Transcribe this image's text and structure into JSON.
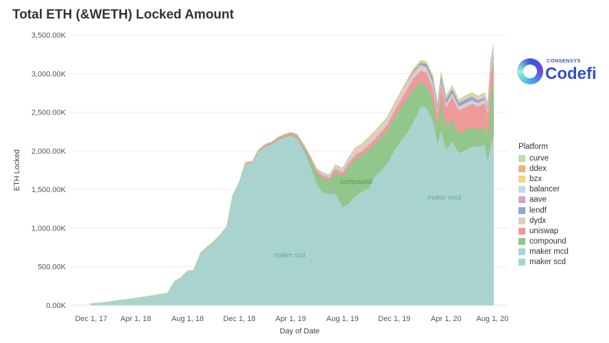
{
  "title": "Total ETH (&WETH) Locked Amount",
  "logo": {
    "sub": "CONSENSYS",
    "main": "Codefi"
  },
  "chart_data": {
    "type": "area",
    "stacked": true,
    "title": "Total ETH (&WETH) Locked Amount",
    "xlabel": "Day of Date",
    "ylabel": "ETH Locked",
    "ylim": [
      0,
      3500
    ],
    "y_unit": "K",
    "grid": true,
    "legend_position": "right",
    "legend_title": "Platform",
    "y_ticks": [
      "0.00K",
      "500.00K",
      "1,000.00K",
      "1,500.00K",
      "2,000.00K",
      "2,500.00K",
      "3,000.00K",
      "3,500.00K"
    ],
    "y_tick_values": [
      0,
      500,
      1000,
      1500,
      2000,
      2500,
      3000,
      3500
    ],
    "x_ticks": [
      "Dec 1, 17",
      "Apr 1, 18",
      "Aug 1, 18",
      "Dec 1, 18",
      "Apr 1, 19",
      "Aug 1, 19",
      "Dec 1, 19",
      "Apr 1, 20",
      "Aug 1, 20"
    ],
    "x_tick_dates": [
      "2017-12-01",
      "2018-04-01",
      "2018-08-01",
      "2018-12-01",
      "2019-04-01",
      "2019-08-01",
      "2019-12-01",
      "2020-04-01",
      "2020-08-01"
    ],
    "annotations": [
      {
        "text": "compound",
        "series": "compound",
        "color": "#4f9a4a"
      },
      {
        "text": "maker mcd",
        "series": "maker mcd",
        "color": "#6aa9a4"
      },
      {
        "text": "maker scd",
        "series": "maker scd",
        "color": "#6aa9a4"
      }
    ],
    "x": [
      "2017-12-15",
      "2018-01-15",
      "2018-02-15",
      "2018-03-15",
      "2018-04-15",
      "2018-05-15",
      "2018-06-15",
      "2018-07-01",
      "2018-07-15",
      "2018-08-01",
      "2018-08-15",
      "2018-09-01",
      "2018-09-15",
      "2018-10-01",
      "2018-10-15",
      "2018-11-01",
      "2018-11-15",
      "2018-12-01",
      "2018-12-15",
      "2019-01-01",
      "2019-01-15",
      "2019-02-01",
      "2019-02-15",
      "2019-03-01",
      "2019-03-15",
      "2019-04-01",
      "2019-04-15",
      "2019-05-01",
      "2019-05-15",
      "2019-06-01",
      "2019-06-15",
      "2019-07-01",
      "2019-07-15",
      "2019-08-01",
      "2019-08-15",
      "2019-09-01",
      "2019-09-15",
      "2019-10-01",
      "2019-10-15",
      "2019-11-01",
      "2019-11-15",
      "2019-12-01",
      "2019-12-15",
      "2020-01-01",
      "2020-01-15",
      "2020-02-01",
      "2020-02-15",
      "2020-03-01",
      "2020-03-12",
      "2020-03-20",
      "2020-04-01",
      "2020-04-15",
      "2020-05-01",
      "2020-05-15",
      "2020-06-01",
      "2020-06-15",
      "2020-07-01",
      "2020-07-08",
      "2020-07-15",
      "2020-07-22"
    ],
    "series": [
      {
        "name": "maker scd",
        "color": "#a9d3cf",
        "values": [
          20,
          35,
          60,
          80,
          105,
          130,
          160,
          310,
          350,
          440,
          450,
          680,
          750,
          820,
          900,
          1015,
          1410,
          1587,
          1835,
          1845,
          1990,
          2062,
          2085,
          2140,
          2170,
          2197,
          2170,
          2015,
          1840,
          1585,
          1460,
          1445,
          1450,
          1270,
          1315,
          1420,
          1470,
          1515,
          1665,
          1755,
          1840,
          1850,
          1465,
          1000,
          720,
          560,
          460,
          420,
          400,
          380,
          340,
          310,
          270,
          230,
          40,
          18,
          15,
          15,
          12,
          12
        ]
      },
      {
        "name": "maker mcd",
        "color": "#aad4d0",
        "values": [
          0,
          0,
          0,
          0,
          0,
          0,
          0,
          0,
          0,
          0,
          0,
          0,
          0,
          0,
          0,
          0,
          0,
          0,
          0,
          0,
          0,
          0,
          0,
          0,
          0,
          0,
          0,
          0,
          0,
          0,
          0,
          0,
          0,
          0,
          0,
          0,
          0,
          0,
          0,
          0,
          0,
          160,
          655,
          1240,
          1660,
          2010,
          2105,
          1970,
          1695,
          1890,
          1675,
          1815,
          1705,
          1775,
          2020,
          2037,
          2060,
          1870,
          2058,
          2193
        ]
      },
      {
        "name": "compound",
        "color": "#92c78c",
        "values": [
          0,
          0,
          0,
          0,
          0,
          0,
          0,
          0,
          0,
          0,
          0,
          0,
          0,
          0,
          0,
          0,
          0,
          0,
          0,
          3,
          5,
          5,
          5,
          8,
          10,
          10,
          15,
          40,
          80,
          130,
          190,
          170,
          280,
          400,
          480,
          480,
          470,
          500,
          420,
          430,
          430,
          420,
          430,
          450,
          420,
          320,
          290,
          260,
          230,
          390,
          300,
          290,
          250,
          260,
          250,
          220,
          240,
          300,
          700,
          700
        ]
      },
      {
        "name": "uniswap",
        "color": "#ef9a9a",
        "values": [
          0,
          0,
          0,
          0,
          0,
          0,
          0,
          0,
          0,
          0,
          0,
          0,
          0,
          0,
          0,
          0,
          5,
          8,
          10,
          12,
          15,
          18,
          20,
          22,
          25,
          28,
          30,
          30,
          30,
          35,
          35,
          40,
          45,
          50,
          50,
          55,
          55,
          60,
          65,
          70,
          75,
          90,
          100,
          120,
          140,
          150,
          160,
          170,
          160,
          200,
          250,
          280,
          300,
          300,
          300,
          300,
          300,
          300,
          250,
          250
        ]
      },
      {
        "name": "dydx",
        "color": "#d8cfcc",
        "values": [
          0,
          0,
          0,
          0,
          0,
          0,
          0,
          0,
          0,
          0,
          0,
          0,
          0,
          0,
          0,
          0,
          0,
          0,
          0,
          0,
          0,
          0,
          0,
          0,
          0,
          0,
          0,
          0,
          0,
          20,
          25,
          30,
          40,
          50,
          60,
          70,
          75,
          80,
          80,
          80,
          80,
          80,
          85,
          85,
          80,
          75,
          70,
          65,
          50,
          60,
          55,
          55,
          50,
          50,
          50,
          50,
          50,
          50,
          50,
          50
        ]
      },
      {
        "name": "lendf",
        "color": "#8da7cc",
        "values": [
          0,
          0,
          0,
          0,
          0,
          0,
          0,
          0,
          0,
          0,
          0,
          0,
          0,
          0,
          0,
          0,
          0,
          0,
          0,
          0,
          0,
          0,
          0,
          0,
          0,
          0,
          0,
          0,
          0,
          0,
          0,
          0,
          0,
          0,
          0,
          0,
          0,
          0,
          0,
          0,
          0,
          0,
          0,
          10,
          20,
          30,
          40,
          60,
          50,
          60,
          50,
          50,
          40,
          40,
          30,
          20,
          15,
          10,
          10,
          10
        ]
      },
      {
        "name": "aave",
        "color": "#d3a6c9",
        "values": [
          0,
          0,
          0,
          0,
          0,
          0,
          0,
          0,
          0,
          0,
          0,
          0,
          0,
          0,
          0,
          0,
          0,
          0,
          0,
          0,
          0,
          0,
          0,
          0,
          0,
          0,
          0,
          0,
          0,
          0,
          0,
          0,
          0,
          0,
          0,
          0,
          0,
          0,
          0,
          0,
          0,
          0,
          0,
          0,
          0,
          0,
          5,
          5,
          5,
          10,
          10,
          10,
          15,
          15,
          20,
          20,
          25,
          25,
          30,
          30
        ]
      },
      {
        "name": "balancer",
        "color": "#bddce9",
        "values": [
          0,
          0,
          0,
          0,
          0,
          0,
          0,
          0,
          0,
          0,
          0,
          0,
          0,
          0,
          0,
          0,
          0,
          0,
          0,
          0,
          0,
          0,
          0,
          0,
          0,
          0,
          0,
          0,
          0,
          0,
          0,
          0,
          0,
          0,
          0,
          0,
          0,
          0,
          0,
          0,
          0,
          0,
          0,
          0,
          0,
          0,
          0,
          0,
          5,
          5,
          5,
          10,
          10,
          15,
          20,
          20,
          25,
          25,
          60,
          100
        ]
      },
      {
        "name": "bzx",
        "color": "#f4d67c",
        "values": [
          0,
          0,
          0,
          0,
          0,
          0,
          0,
          0,
          0,
          0,
          0,
          0,
          0,
          0,
          0,
          0,
          0,
          0,
          0,
          0,
          0,
          0,
          0,
          0,
          0,
          0,
          0,
          0,
          0,
          0,
          0,
          0,
          0,
          0,
          0,
          15,
          15,
          15,
          15,
          15,
          15,
          15,
          15,
          15,
          15,
          15,
          15,
          15,
          15,
          15,
          15,
          15,
          15,
          15,
          15,
          15,
          15,
          15,
          15,
          15
        ]
      },
      {
        "name": "ddex",
        "color": "#f4b07a",
        "values": [
          0,
          0,
          0,
          0,
          0,
          0,
          0,
          0,
          5,
          5,
          5,
          5,
          5,
          5,
          5,
          5,
          5,
          5,
          5,
          5,
          5,
          5,
          5,
          5,
          5,
          5,
          5,
          5,
          5,
          5,
          5,
          5,
          5,
          5,
          5,
          5,
          5,
          5,
          5,
          5,
          5,
          5,
          5,
          5,
          5,
          5,
          5,
          5,
          5,
          5,
          5,
          5,
          5,
          5,
          5,
          5,
          5,
          5,
          5,
          5
        ]
      },
      {
        "name": "curve",
        "color": "#b6e0aa",
        "values": [
          0,
          0,
          0,
          0,
          0,
          0,
          0,
          0,
          0,
          0,
          0,
          0,
          0,
          0,
          0,
          0,
          0,
          0,
          0,
          0,
          0,
          0,
          0,
          0,
          0,
          0,
          0,
          0,
          0,
          0,
          0,
          0,
          0,
          0,
          0,
          0,
          0,
          0,
          0,
          0,
          0,
          0,
          0,
          5,
          5,
          5,
          5,
          5,
          5,
          5,
          5,
          5,
          5,
          5,
          5,
          5,
          5,
          5,
          10,
          10
        ]
      }
    ],
    "legend_order": [
      "curve",
      "ddex",
      "bzx",
      "balancer",
      "aave",
      "lendf",
      "dydx",
      "uniswap",
      "compound",
      "maker mcd",
      "maker scd"
    ]
  }
}
